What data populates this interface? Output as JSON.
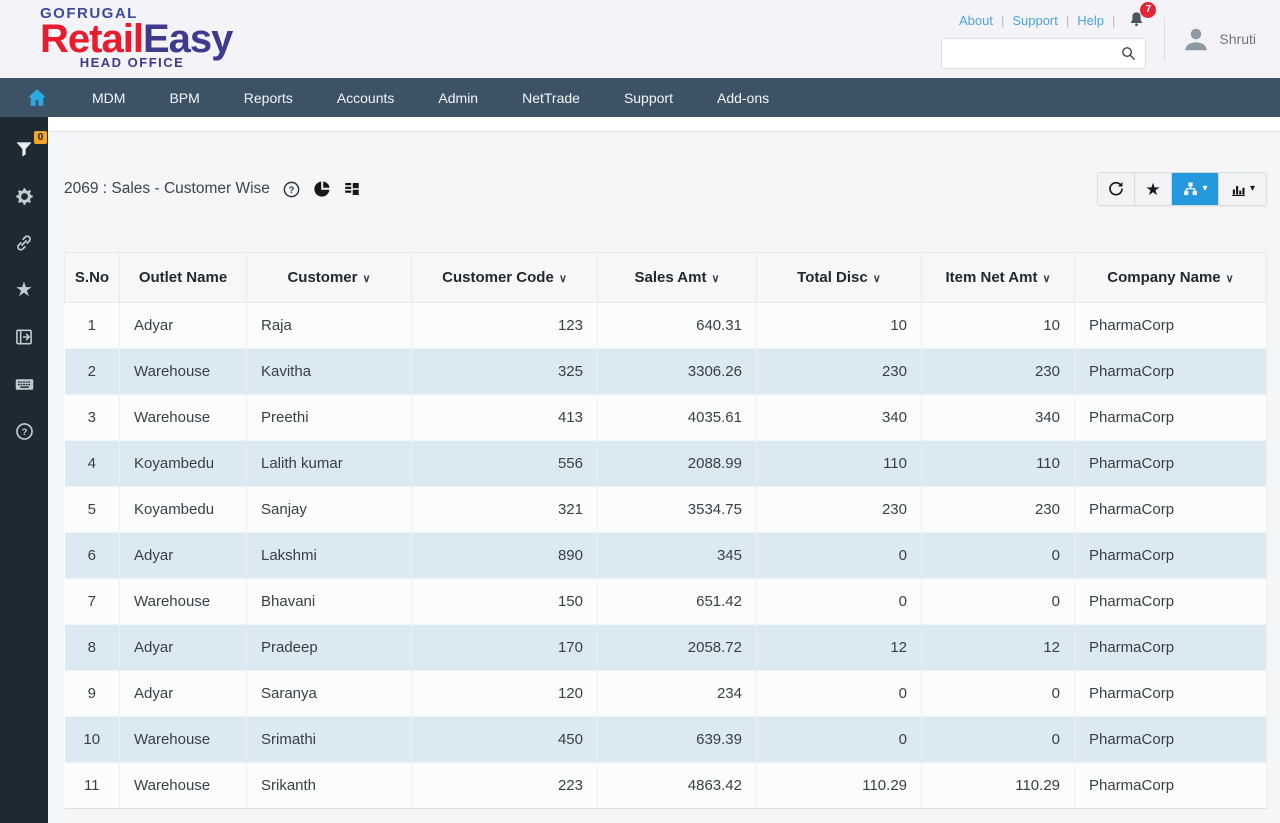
{
  "header": {
    "brand": "GOFRUGAL",
    "product_red": "Retail",
    "product_blue": "Easy",
    "office_label": "HEAD OFFICE",
    "links": [
      "About",
      "Support",
      "Help"
    ],
    "notification_count": "7",
    "search": {
      "value": "",
      "placeholder": ""
    },
    "user_name": "Shruti"
  },
  "nav": {
    "items": [
      "MDM",
      "BPM",
      "Reports",
      "Accounts",
      "Admin",
      "NetTrade",
      "Support",
      "Add-ons"
    ]
  },
  "sidebar": {
    "filter_badge": "0",
    "icons": [
      "filter",
      "settings",
      "link",
      "favorites",
      "export",
      "keyboard",
      "help"
    ]
  },
  "report": {
    "title": "2069 : Sales - Customer Wise",
    "title_icons": [
      "help",
      "pie-chart",
      "grid-view"
    ],
    "toolbar": [
      "refresh",
      "favorite",
      "hierarchy-view",
      "chart-view"
    ],
    "active_tool": "hierarchy-view"
  },
  "colors": {
    "accent_blue": "#29abe2",
    "active_button": "#2499de",
    "nav_bg": "#3d5265",
    "rail_bg": "#1d2a31",
    "badge_orange": "#f2a32a",
    "badge_red": "#e32636",
    "row_even": "#dbe9f2",
    "brand_red": "#e81c2c",
    "brand_navy": "#3e3a8d"
  },
  "table": {
    "columns": [
      {
        "key": "sno",
        "label": "S.No",
        "sortable": false,
        "align": "center"
      },
      {
        "key": "outlet-name",
        "label": "Outlet Name",
        "sortable": false,
        "align": "left"
      },
      {
        "key": "customer",
        "label": "Customer",
        "sortable": true,
        "align": "left"
      },
      {
        "key": "customer-code",
        "label": "Customer Code",
        "sortable": true,
        "align": "right"
      },
      {
        "key": "sales-amt",
        "label": "Sales Amt",
        "sortable": true,
        "align": "right"
      },
      {
        "key": "total-disc",
        "label": "Total Disc",
        "sortable": true,
        "align": "right"
      },
      {
        "key": "item-net-amt",
        "label": "Item Net Amt",
        "sortable": true,
        "align": "right"
      },
      {
        "key": "company-name",
        "label": "Company Name",
        "sortable": true,
        "align": "left"
      }
    ],
    "rows": [
      [
        "1",
        "Adyar",
        "Raja",
        "123",
        "640.31",
        "10",
        "10",
        "PharmaCorp"
      ],
      [
        "2",
        "Warehouse",
        "Kavitha",
        "325",
        "3306.26",
        "230",
        "230",
        "PharmaCorp"
      ],
      [
        "3",
        "Warehouse",
        "Preethi",
        "413",
        "4035.61",
        "340",
        "340",
        "PharmaCorp"
      ],
      [
        "4",
        "Koyambedu",
        "Lalith kumar",
        "556",
        "2088.99",
        "110",
        "110",
        "PharmaCorp"
      ],
      [
        "5",
        "Koyambedu",
        "Sanjay",
        "321",
        "3534.75",
        "230",
        "230",
        "PharmaCorp"
      ],
      [
        "6",
        "Adyar",
        "Lakshmi",
        "890",
        "345",
        "0",
        "0",
        "PharmaCorp"
      ],
      [
        "7",
        "Warehouse",
        "Bhavani",
        "150",
        "651.42",
        "0",
        "0",
        "PharmaCorp"
      ],
      [
        "8",
        "Adyar",
        "Pradeep",
        "170",
        "2058.72",
        "12",
        "12",
        "PharmaCorp"
      ],
      [
        "9",
        "Adyar",
        "Saranya",
        "120",
        "234",
        "0",
        "0",
        "PharmaCorp"
      ],
      [
        "10",
        "Warehouse",
        "Srimathi",
        "450",
        "639.39",
        "0",
        "0",
        "PharmaCorp"
      ],
      [
        "11",
        "Warehouse",
        "Srikanth",
        "223",
        "4863.42",
        "110.29",
        "110.29",
        "PharmaCorp"
      ]
    ]
  }
}
